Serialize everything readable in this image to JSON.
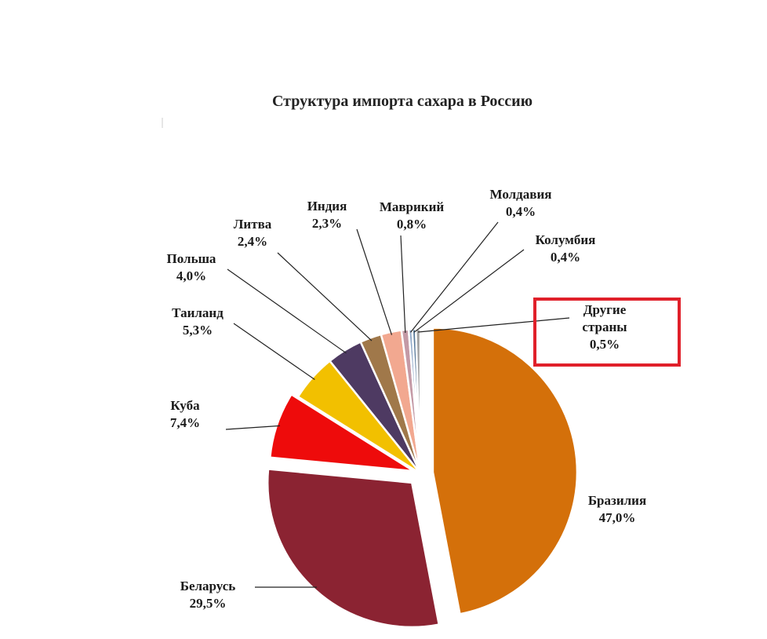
{
  "chart_data": {
    "type": "pie",
    "title": "Структура импорта сахара в Россию",
    "slices": [
      {
        "name": "Бразилия",
        "value": 47.0,
        "value_label": "47,0%",
        "color": "#D4700A"
      },
      {
        "name": "Беларусь",
        "value": 29.5,
        "value_label": "29,5%",
        "color": "#8B2332"
      },
      {
        "name": "Куба",
        "value": 7.4,
        "value_label": "7,4%",
        "color": "#EE0B0B"
      },
      {
        "name": "Таиланд",
        "value": 5.3,
        "value_label": "5,3%",
        "color": "#F2C000"
      },
      {
        "name": "Польша",
        "value": 4.0,
        "value_label": "4,0%",
        "color": "#4E3A62"
      },
      {
        "name": "Литва",
        "value": 2.4,
        "value_label": "2,4%",
        "color": "#A0784A"
      },
      {
        "name": "Индия",
        "value": 2.3,
        "value_label": "2,3%",
        "color": "#F2A890"
      },
      {
        "name": "Маврикий",
        "value": 0.8,
        "value_label": "0,8%",
        "color": "#C49AA6"
      },
      {
        "name": "Молдавия",
        "value": 0.4,
        "value_label": "0,4%",
        "color": "#8FA8C8"
      },
      {
        "name": "Колумбия",
        "value": 0.4,
        "value_label": "0,4%",
        "color": "#5A7A9A"
      },
      {
        "name": "Другие страны",
        "value": 0.5,
        "value_label": "0,5%",
        "color": "#A0A0A0"
      }
    ],
    "highlighted_slice": "Другие страны",
    "highlight_color": "#E0202A",
    "legend": "none"
  }
}
